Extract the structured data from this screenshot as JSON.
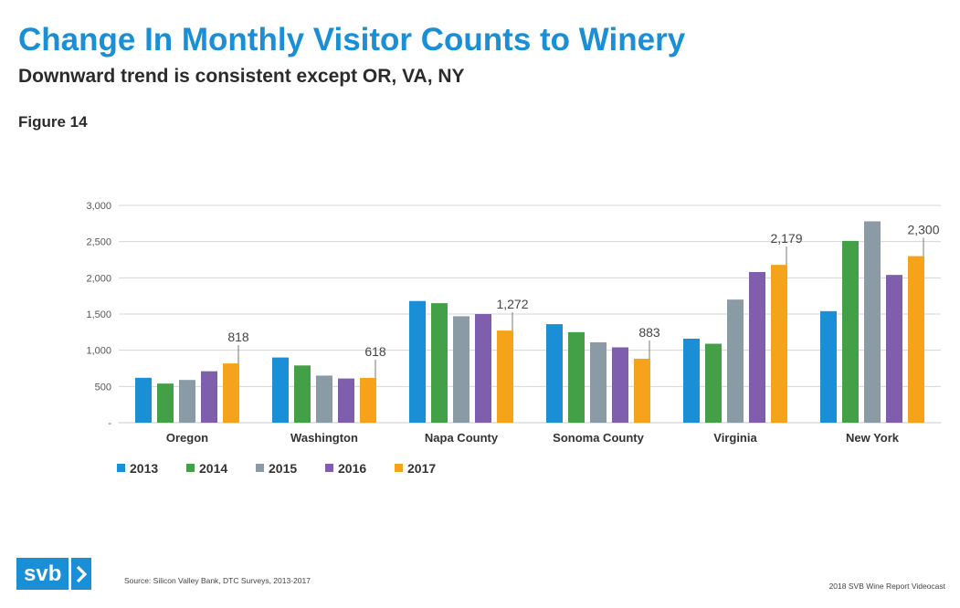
{
  "header": {
    "title": "Change In Monthly Visitor Counts to Winery",
    "subtitle": "Downward trend is consistent except OR, VA, NY",
    "figure_label": "Figure 14"
  },
  "footer": {
    "logo_text": "svb",
    "logo_arrow": "chevron-right-icon",
    "source": "Source: Silicon Valley Bank, DTC Surveys, 2013-2017",
    "credit": "2018 SVB Wine Report Videocast"
  },
  "chart_data": {
    "type": "bar",
    "categories": [
      "Oregon",
      "Washington",
      "Napa County",
      "Sonoma County",
      "Virginia",
      "New York"
    ],
    "series": [
      {
        "name": "2013",
        "color": "#1a8fd6",
        "values": [
          620,
          900,
          1680,
          1360,
          1160,
          1540
        ]
      },
      {
        "name": "2014",
        "color": "#43a047",
        "values": [
          540,
          790,
          1650,
          1250,
          1090,
          2510
        ]
      },
      {
        "name": "2015",
        "color": "#8a9ba6",
        "values": [
          590,
          650,
          1470,
          1110,
          1700,
          2780
        ]
      },
      {
        "name": "2016",
        "color": "#7e5ead",
        "values": [
          710,
          610,
          1500,
          1040,
          2080,
          2040
        ]
      },
      {
        "name": "2017",
        "color": "#f5a31a",
        "values": [
          818,
          618,
          1272,
          883,
          2179,
          2300
        ]
      }
    ],
    "data_labels": [
      "818",
      "618",
      "1,272",
      "883",
      "2,179",
      "2,300"
    ],
    "y_ticks": [
      {
        "value": 0,
        "label": "-"
      },
      {
        "value": 500,
        "label": "500"
      },
      {
        "value": 1000,
        "label": "1,000"
      },
      {
        "value": 1500,
        "label": "1,500"
      },
      {
        "value": 2000,
        "label": "2,000"
      },
      {
        "value": 2500,
        "label": "2,500"
      },
      {
        "value": 3000,
        "label": "3,000"
      }
    ],
    "ylim": [
      0,
      3000
    ],
    "grid": true,
    "legend_position": "bottom-left"
  }
}
